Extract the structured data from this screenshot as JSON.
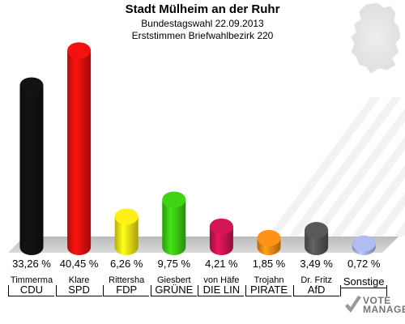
{
  "header": {
    "title": "Stadt Mülheim an der Ruhr",
    "subtitle1": "Bundestagswahl 22.09.2013",
    "subtitle2": "Erststimmen Briefwahlbezirk 220"
  },
  "logo": {
    "text1": "VOTE",
    "text2": "MANAGER"
  },
  "chart_data": {
    "type": "bar",
    "title": "Stadt Mülheim an der Ruhr",
    "subtitle": [
      "Bundestagswahl 22.09.2013",
      "Erststimmen Briefwahlbezirk 220"
    ],
    "xlabel": "",
    "ylabel": "",
    "ylim": [
      0,
      45
    ],
    "grid": false,
    "categories": [
      "CDU",
      "SPD",
      "FDP",
      "GRÜNE",
      "DIE LIN",
      "PIRATE",
      "AfD",
      "Sonstige"
    ],
    "candidates": [
      "Timmerma",
      "Klare",
      "Rittersha",
      "Giesbert",
      "von Häfe",
      "Trojahn",
      "Dr. Fritz",
      ""
    ],
    "values": [
      33.26,
      40.45,
      6.26,
      9.75,
      4.21,
      1.85,
      3.49,
      0.72
    ],
    "value_labels": [
      "33,26 %",
      "40,45 %",
      "6,26 %",
      "9,75 %",
      "4,21 %",
      "1,85 %",
      "3,49 %",
      "0,72 %"
    ],
    "colors": [
      "#111111",
      "#e8100e",
      "#f2e414",
      "#3cc814",
      "#cc1450",
      "#f58c14",
      "#555555",
      "#a8b4e6"
    ]
  }
}
